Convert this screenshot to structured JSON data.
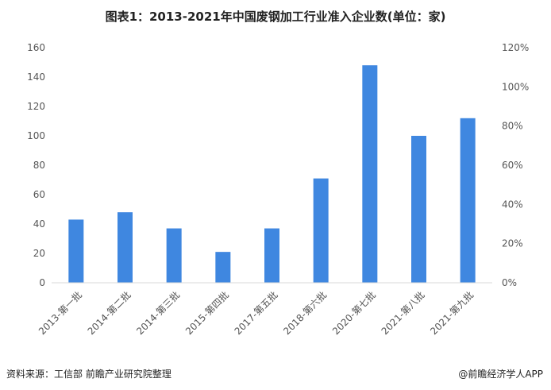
{
  "title": "图表1：2013-2021年中国废钢加工行业准入企业数(单位：家)",
  "source": "资料来源：工信部 前瞻产业研究院整理",
  "brand": "@前瞻经济学人APP",
  "colors": {
    "bar": "#3f87e0",
    "axis_text": "#555555",
    "axis_line": "#d9d9d9"
  },
  "chart_data": {
    "type": "bar",
    "title": "图表1：2013-2021年中国废钢加工行业准入企业数(单位：家)",
    "categories": [
      "2013-第一批",
      "2014-第二批",
      "2014-第三批",
      "2015-第四批",
      "2017-第五批",
      "2018-第六批",
      "2020-第七批",
      "2021-第八批",
      "2021-第九批"
    ],
    "series": [
      {
        "values": [
          43,
          48,
          37,
          21,
          37,
          71,
          148,
          100,
          112
        ]
      }
    ],
    "ylim": [
      0,
      160
    ],
    "yticks": [
      "0",
      "20",
      "40",
      "60",
      "80",
      "100",
      "120",
      "140",
      "160"
    ],
    "y2lim": [
      0,
      1.2
    ],
    "y2ticks": [
      "0%",
      "20%",
      "40%",
      "60%",
      "80%",
      "100%",
      "120%"
    ],
    "grid": false,
    "xlabel": "",
    "ylabel": ""
  }
}
